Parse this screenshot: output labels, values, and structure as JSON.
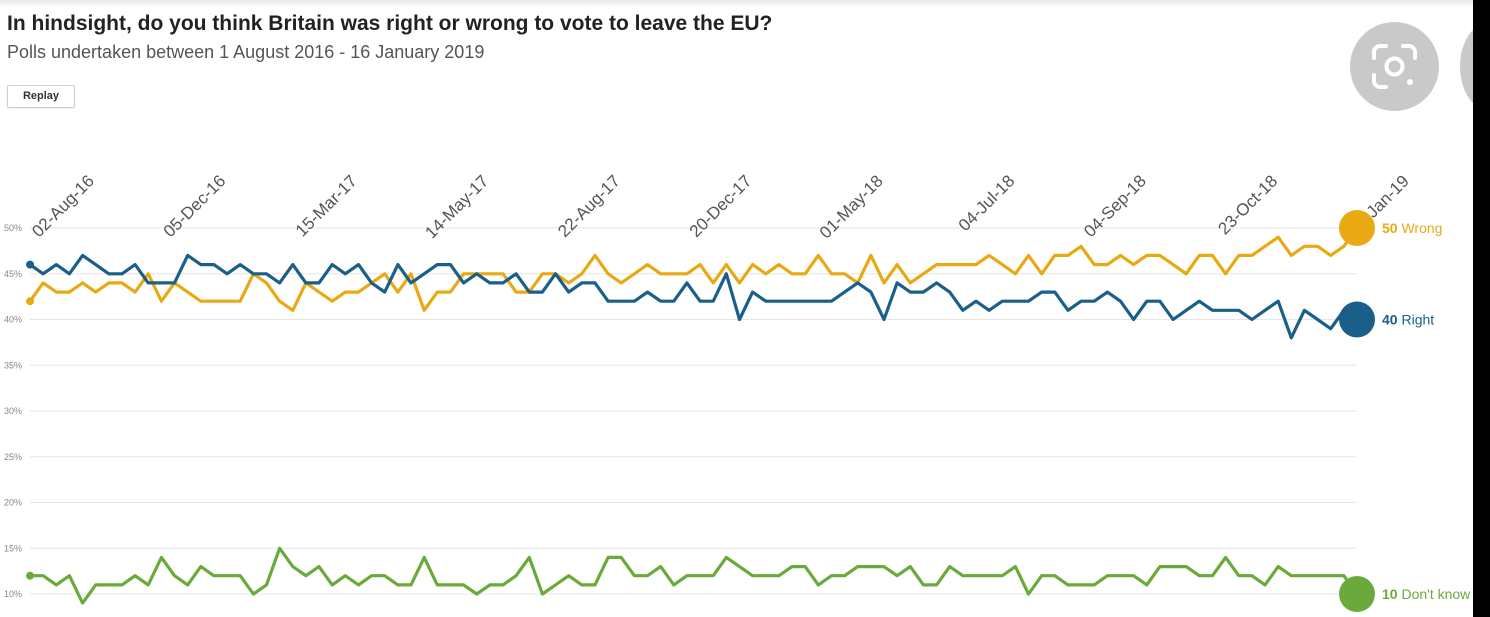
{
  "header": {
    "title": "In hindsight, do you think Britain was right or wrong to vote to leave the EU?",
    "subtitle": "Polls undertaken between 1 August 2016 - 16 January 2019",
    "replay_label": "Replay"
  },
  "overlay": {
    "lens_icon": "google-lens-icon",
    "side_icon": "more-dot-icon"
  },
  "chart_data": {
    "type": "line",
    "title": "In hindsight, do you think Britain was right or wrong to vote to leave the EU?",
    "subtitle": "Polls undertaken between 1 August 2016 - 16 January 2019",
    "x_tick_labels": [
      "02-Aug-16",
      "05-Dec-16",
      "15-Mar-17",
      "14-May-17",
      "22-Aug-17",
      "20-Dec-17",
      "01-May-18",
      "04-Jul-18",
      "04-Sep-18",
      "23-Oct-18",
      "14-Jan-19"
    ],
    "y_tick_labels": [
      "10%",
      "15%",
      "20%",
      "25%",
      "30%",
      "35%",
      "40%",
      "45%",
      "50%"
    ],
    "y_ticks": [
      10,
      15,
      20,
      25,
      30,
      35,
      40,
      45,
      50
    ],
    "ylim": [
      10,
      50
    ],
    "grid": true,
    "series": [
      {
        "name": "Wrong",
        "color": "#e8a913",
        "end_label": "50 Wrong",
        "values": [
          42,
          44,
          43,
          43,
          44,
          43,
          44,
          44,
          43,
          45,
          42,
          44,
          43,
          42,
          42,
          42,
          42,
          45,
          44,
          42,
          41,
          44,
          43,
          42,
          43,
          43,
          44,
          45,
          43,
          45,
          41,
          43,
          43,
          45,
          45,
          45,
          45,
          43,
          43,
          45,
          45,
          44,
          45,
          47,
          45,
          44,
          45,
          46,
          45,
          45,
          45,
          46,
          44,
          46,
          44,
          46,
          45,
          46,
          45,
          45,
          47,
          45,
          45,
          44,
          47,
          44,
          46,
          44,
          45,
          46,
          46,
          46,
          46,
          47,
          46,
          45,
          47,
          45,
          47,
          47,
          48,
          46,
          46,
          47,
          46,
          47,
          47,
          46,
          45,
          47,
          47,
          45,
          47,
          47,
          48,
          49,
          47,
          48,
          48,
          47,
          48,
          50
        ]
      },
      {
        "name": "Right",
        "color": "#1a5f8a",
        "end_label": "40 Right",
        "values": [
          46,
          45,
          46,
          45,
          47,
          46,
          45,
          45,
          46,
          44,
          44,
          44,
          47,
          46,
          46,
          45,
          46,
          45,
          45,
          44,
          46,
          44,
          44,
          46,
          45,
          46,
          44,
          43,
          46,
          44,
          45,
          46,
          46,
          44,
          45,
          44,
          44,
          45,
          43,
          43,
          45,
          43,
          44,
          44,
          42,
          42,
          42,
          43,
          42,
          42,
          44,
          42,
          42,
          45,
          40,
          43,
          42,
          42,
          42,
          42,
          42,
          42,
          43,
          44,
          43,
          40,
          44,
          43,
          43,
          44,
          43,
          41,
          42,
          41,
          42,
          42,
          42,
          43,
          43,
          41,
          42,
          42,
          43,
          42,
          40,
          42,
          42,
          40,
          41,
          42,
          41,
          41,
          41,
          40,
          41,
          42,
          38,
          41,
          40,
          39,
          41,
          40
        ]
      },
      {
        "name": "Don't know",
        "color": "#6aaa3a",
        "end_label": "10 Don't know",
        "values": [
          12,
          12,
          11,
          12,
          9,
          11,
          11,
          11,
          12,
          11,
          14,
          12,
          11,
          13,
          12,
          12,
          12,
          10,
          11,
          15,
          13,
          12,
          13,
          11,
          12,
          11,
          12,
          12,
          11,
          11,
          14,
          11,
          11,
          11,
          10,
          11,
          11,
          12,
          14,
          10,
          11,
          12,
          11,
          11,
          14,
          14,
          12,
          12,
          13,
          11,
          12,
          12,
          12,
          14,
          13,
          12,
          12,
          12,
          13,
          13,
          11,
          12,
          12,
          13,
          13,
          13,
          12,
          13,
          11,
          11,
          13,
          12,
          12,
          12,
          12,
          13,
          10,
          12,
          12,
          11,
          11,
          11,
          12,
          12,
          12,
          11,
          13,
          13,
          13,
          12,
          12,
          14,
          12,
          12,
          11,
          13,
          12,
          12,
          12,
          12,
          12,
          10
        ]
      }
    ]
  }
}
